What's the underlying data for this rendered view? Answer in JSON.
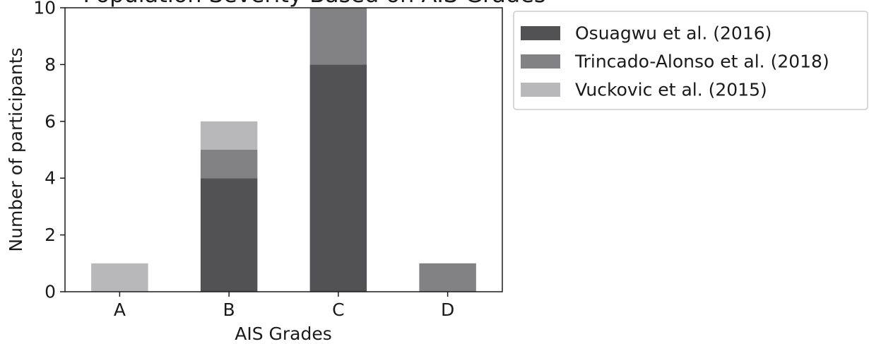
{
  "chart_data": {
    "type": "bar",
    "stacked": true,
    "title": "Population Severity Based on AIS Grades",
    "xlabel": "AIS Grades",
    "ylabel": "Number of participants",
    "categories": [
      "A",
      "B",
      "C",
      "D"
    ],
    "ylim": [
      0,
      10
    ],
    "yticks": [
      0,
      2,
      4,
      6,
      8,
      10
    ],
    "grid": false,
    "legend_position": "outside-right-top",
    "series": [
      {
        "name": "Osuagwu et al. (2016)",
        "values": [
          0,
          4,
          8,
          0
        ],
        "color": "#525254"
      },
      {
        "name": "Trincado-Alonso et al. (2018)",
        "values": [
          0,
          1,
          2,
          1
        ],
        "color": "#828285"
      },
      {
        "name": "Vuckovic et al. (2015)",
        "values": [
          1,
          1,
          0,
          0
        ],
        "color": "#b8b8bb"
      }
    ]
  }
}
